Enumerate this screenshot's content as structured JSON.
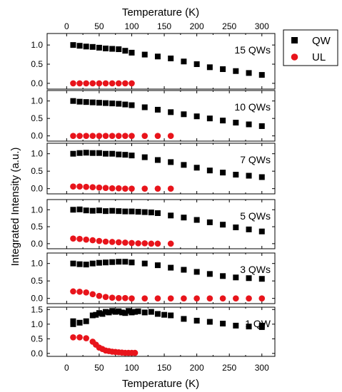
{
  "chart_data": {
    "type": "scatter",
    "xlabel": "Temperature (K)",
    "ylabel": "Integrated Intensity (a.u.)",
    "xlim": [
      -30,
      320
    ],
    "xticks": [
      0,
      50,
      100,
      150,
      200,
      250,
      300
    ],
    "legend": {
      "placement": "top-right-outside",
      "entries": [
        {
          "name": "QW",
          "color": "#000000",
          "marker": "square"
        },
        {
          "name": "UL",
          "color": "#e8141b",
          "marker": "circle"
        }
      ]
    },
    "panels": [
      {
        "label": "15 QWs",
        "ylim": [
          -0.15,
          1.3
        ],
        "yticks": [
          "0.0",
          "0.5",
          "1.0"
        ],
        "series": [
          {
            "name": "QW",
            "x": [
              10,
              20,
              30,
              40,
              50,
              60,
              70,
              80,
              90,
              100,
              120,
              140,
              160,
              180,
              200,
              220,
              240,
              260,
              280,
              300
            ],
            "y": [
              1.0,
              0.98,
              0.96,
              0.95,
              0.93,
              0.91,
              0.9,
              0.89,
              0.85,
              0.8,
              0.75,
              0.7,
              0.65,
              0.57,
              0.5,
              0.42,
              0.37,
              0.32,
              0.27,
              0.22
            ]
          },
          {
            "name": "UL",
            "x": [
              10,
              20,
              30,
              40,
              50,
              60,
              70,
              80,
              90,
              100
            ],
            "y": [
              0,
              0,
              0,
              0,
              0,
              0,
              0,
              0,
              0,
              0
            ]
          }
        ]
      },
      {
        "label": "10 QWs",
        "ylim": [
          -0.15,
          1.3
        ],
        "yticks": [
          "0.0",
          "0.5",
          "1.0"
        ],
        "series": [
          {
            "name": "QW",
            "x": [
              10,
              20,
              30,
              40,
              50,
              60,
              70,
              80,
              90,
              100,
              120,
              140,
              160,
              180,
              200,
              220,
              240,
              260,
              280,
              300
            ],
            "y": [
              1.0,
              0.98,
              0.97,
              0.96,
              0.95,
              0.94,
              0.93,
              0.92,
              0.9,
              0.88,
              0.82,
              0.75,
              0.68,
              0.62,
              0.56,
              0.5,
              0.44,
              0.38,
              0.33,
              0.28
            ]
          },
          {
            "name": "UL",
            "x": [
              10,
              20,
              30,
              40,
              50,
              60,
              70,
              80,
              90,
              100,
              120,
              140,
              160
            ],
            "y": [
              0,
              0,
              0,
              0,
              0,
              0,
              0,
              0,
              0,
              0,
              0,
              0,
              0
            ]
          }
        ]
      },
      {
        "label": "7 QWs",
        "ylim": [
          -0.15,
          1.3
        ],
        "yticks": [
          "0.0",
          "0.5",
          "1.0"
        ],
        "series": [
          {
            "name": "QW",
            "x": [
              10,
              20,
              30,
              40,
              50,
              60,
              70,
              80,
              90,
              100,
              120,
              140,
              160,
              180,
              200,
              220,
              240,
              260,
              280,
              300
            ],
            "y": [
              1.0,
              1.02,
              1.03,
              1.02,
              1.02,
              1.0,
              1.0,
              0.98,
              0.97,
              0.95,
              0.9,
              0.82,
              0.76,
              0.68,
              0.6,
              0.52,
              0.46,
              0.4,
              0.37,
              0.33
            ]
          },
          {
            "name": "UL",
            "x": [
              10,
              20,
              30,
              40,
              50,
              60,
              70,
              80,
              90,
              100,
              120,
              140,
              160
            ],
            "y": [
              0.06,
              0.06,
              0.05,
              0.04,
              0.03,
              0.02,
              0.01,
              0.01,
              0.0,
              0.0,
              0.0,
              0.0,
              0.0
            ]
          }
        ]
      },
      {
        "label": "5 QWs",
        "ylim": [
          -0.15,
          1.3
        ],
        "yticks": [
          "0.0",
          "0.5",
          "1.0"
        ],
        "series": [
          {
            "name": "QW",
            "x": [
              10,
              20,
              30,
              40,
              50,
              60,
              70,
              80,
              90,
              100,
              110,
              120,
              130,
              140,
              160,
              180,
              200,
              220,
              240,
              260,
              280,
              300
            ],
            "y": [
              1.0,
              1.01,
              0.98,
              0.97,
              0.98,
              0.96,
              0.97,
              0.96,
              0.95,
              0.95,
              0.94,
              0.93,
              0.92,
              0.9,
              0.83,
              0.77,
              0.7,
              0.63,
              0.56,
              0.48,
              0.42,
              0.36
            ]
          },
          {
            "name": "UL",
            "x": [
              10,
              20,
              30,
              40,
              50,
              60,
              70,
              80,
              90,
              100,
              110,
              120,
              130,
              140,
              160
            ],
            "y": [
              0.15,
              0.14,
              0.12,
              0.1,
              0.08,
              0.06,
              0.05,
              0.04,
              0.03,
              0.02,
              0.01,
              0.01,
              0.0,
              0.0,
              0.0
            ]
          }
        ]
      },
      {
        "label": "3 QWs",
        "ylim": [
          -0.15,
          1.3
        ],
        "yticks": [
          "0.0",
          "0.5",
          "1.0"
        ],
        "series": [
          {
            "name": "QW",
            "x": [
              10,
              20,
              30,
              40,
              50,
              60,
              70,
              80,
              90,
              100,
              120,
              140,
              160,
              180,
              200,
              220,
              240,
              260,
              280,
              300
            ],
            "y": [
              1.0,
              0.98,
              0.97,
              1.0,
              1.02,
              1.03,
              1.04,
              1.05,
              1.05,
              1.03,
              1.0,
              0.95,
              0.88,
              0.82,
              0.76,
              0.7,
              0.64,
              0.6,
              0.58,
              0.56
            ]
          },
          {
            "name": "UL",
            "x": [
              10,
              20,
              30,
              40,
              50,
              60,
              70,
              80,
              90,
              100,
              120,
              140,
              160,
              180,
              200,
              220,
              240,
              260,
              280,
              300
            ],
            "y": [
              0.2,
              0.19,
              0.17,
              0.12,
              0.07,
              0.04,
              0.02,
              0.01,
              0.01,
              0.0,
              0.0,
              0.0,
              0.0,
              0.0,
              0.0,
              0.0,
              0.0,
              0.0,
              0.0,
              0.0
            ]
          }
        ]
      },
      {
        "label": "1 QW",
        "ylim": [
          -0.1,
          1.58
        ],
        "yticks": [
          "0.0",
          "0.5",
          "1.0",
          "1.5"
        ],
        "series": [
          {
            "name": "QW",
            "x": [
              10,
              10,
              20,
              30,
              40,
              45,
              50,
              55,
              60,
              65,
              70,
              75,
              80,
              85,
              90,
              95,
              100,
              105,
              110,
              120,
              130,
              140,
              150,
              160,
              180,
              200,
              220,
              240,
              260,
              280,
              300,
              300
            ],
            "y": [
              1.0,
              1.1,
              1.05,
              1.1,
              1.3,
              1.32,
              1.38,
              1.35,
              1.42,
              1.4,
              1.45,
              1.42,
              1.44,
              1.4,
              1.38,
              1.45,
              1.4,
              1.42,
              1.44,
              1.4,
              1.42,
              1.35,
              1.32,
              1.3,
              1.18,
              1.12,
              1.08,
              1.02,
              0.95,
              0.92,
              0.9,
              0.95
            ]
          },
          {
            "name": "UL",
            "x": [
              10,
              20,
              30,
              40,
              45,
              50,
              55,
              60,
              65,
              70,
              75,
              80,
              85,
              90,
              95,
              100,
              105
            ],
            "y": [
              0.55,
              0.55,
              0.52,
              0.4,
              0.3,
              0.2,
              0.15,
              0.1,
              0.08,
              0.06,
              0.05,
              0.04,
              0.03,
              0.02,
              0.02,
              0.02,
              0.02
            ]
          }
        ]
      }
    ]
  }
}
